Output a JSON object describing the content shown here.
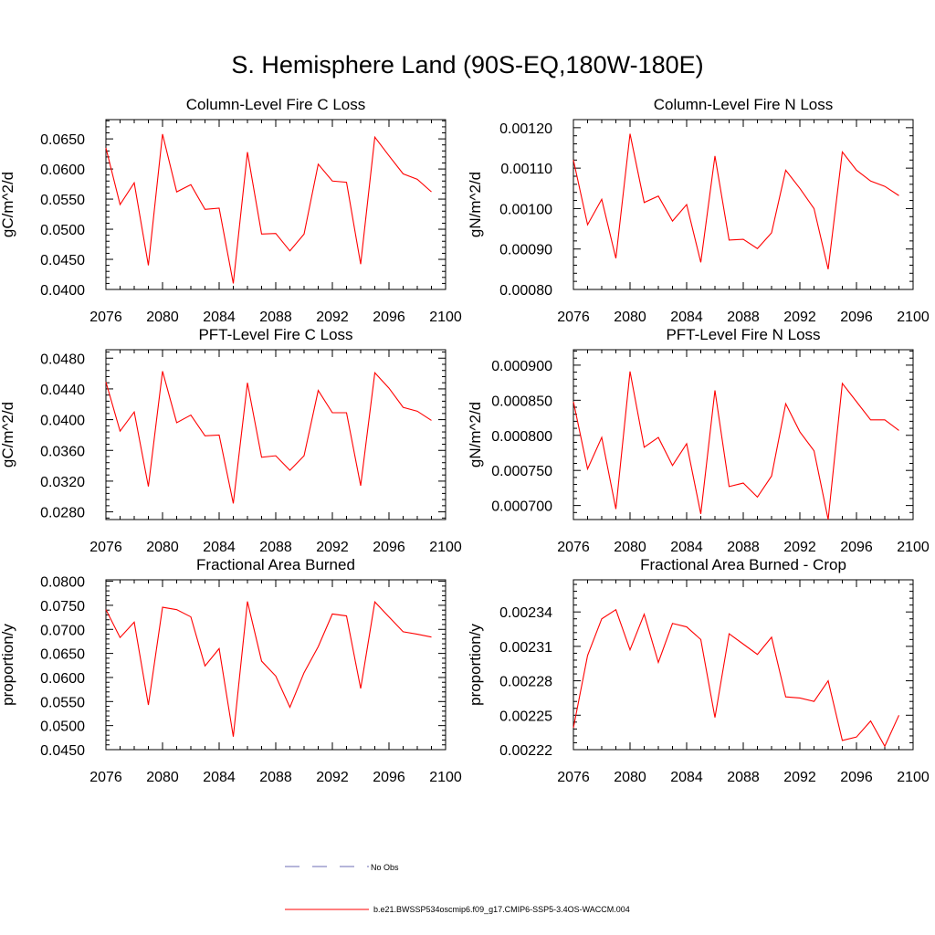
{
  "title": "S. Hemisphere Land (90S-EQ,180W-180E)",
  "legend": {
    "obs_label": "No Obs",
    "obs_color": "#6b6bb5",
    "model_label": "b.e21.BWSSP534oscmip6.f09_g17.CMIP6-SSP5-3.4OS-WACCM.004",
    "model_color": "#ff0000"
  },
  "chart_data": [
    {
      "type": "line",
      "title": "Column-Level Fire C Loss",
      "ylabel": "gC/m^2/d",
      "xlim": [
        2076,
        2100
      ],
      "ylim": [
        0.04,
        0.0682
      ],
      "xticks": [
        "2076",
        "2080",
        "2084",
        "2088",
        "2092",
        "2096",
        "2100"
      ],
      "yticks": [
        0.04,
        0.045,
        0.05,
        0.055,
        0.06,
        0.065
      ],
      "ytick_labels": [
        "0.0400",
        "0.0450",
        "0.0500",
        "0.0550",
        "0.0600",
        "0.0650"
      ],
      "x": [
        2076,
        2077,
        2078,
        2079,
        2080,
        2081,
        2082,
        2083,
        2084,
        2085,
        2086,
        2087,
        2088,
        2089,
        2090,
        2091,
        2092,
        2093,
        2094,
        2095,
        2096,
        2097,
        2098,
        2099
      ],
      "series": [
        {
          "name": "b.e21.BWSSP534oscmip6.f09_g17.CMIP6-SSP5-3.4OS-WACCM.004",
          "values": [
            0.0635,
            0.0541,
            0.0577,
            0.044,
            0.0658,
            0.0562,
            0.0574,
            0.0533,
            0.0535,
            0.041,
            0.0628,
            0.0492,
            0.0493,
            0.0464,
            0.0492,
            0.0608,
            0.058,
            0.0578,
            0.0442,
            0.0653,
            0.0622,
            0.0592,
            0.0583,
            0.0562
          ]
        }
      ]
    },
    {
      "type": "line",
      "title": "Column-Level Fire N Loss",
      "ylabel": "gN/m^2/d",
      "xlim": [
        2076,
        2100
      ],
      "ylim": [
        0.0008,
        0.00122
      ],
      "xticks": [
        "2076",
        "2080",
        "2084",
        "2088",
        "2092",
        "2096",
        "2100"
      ],
      "yticks": [
        0.0008,
        0.0009,
        0.001,
        0.0011,
        0.0012
      ],
      "ytick_labels": [
        "0.00080",
        "0.00090",
        "0.00100",
        "0.00110",
        "0.00120"
      ],
      "x": [
        2076,
        2077,
        2078,
        2079,
        2080,
        2081,
        2082,
        2083,
        2084,
        2085,
        2086,
        2087,
        2088,
        2089,
        2090,
        2091,
        2092,
        2093,
        2094,
        2095,
        2096,
        2097,
        2098,
        2099
      ],
      "series": [
        {
          "name": "b.e21.BWSSP534oscmip6.f09_g17.CMIP6-SSP5-3.4OS-WACCM.004",
          "values": [
            0.00112,
            0.00096,
            0.001023,
            0.000877,
            0.001185,
            0.001015,
            0.001031,
            0.000969,
            0.00101,
            0.000867,
            0.00113,
            0.000922,
            0.000924,
            0.000901,
            0.00094,
            0.001095,
            0.00105,
            0.001,
            0.00085,
            0.00114,
            0.001095,
            0.001068,
            0.001055,
            0.001032
          ]
        }
      ]
    },
    {
      "type": "line",
      "title": "PFT-Level Fire C Loss",
      "ylabel": "gC/m^2/d",
      "xlim": [
        2076,
        2100
      ],
      "ylim": [
        0.027,
        0.0491
      ],
      "xticks": [
        "2076",
        "2080",
        "2084",
        "2088",
        "2092",
        "2096",
        "2100"
      ],
      "yticks": [
        0.028,
        0.032,
        0.036,
        0.04,
        0.044,
        0.048
      ],
      "ytick_labels": [
        "0.0280",
        "0.0320",
        "0.0360",
        "0.0400",
        "0.0440",
        "0.0480"
      ],
      "x": [
        2076,
        2077,
        2078,
        2079,
        2080,
        2081,
        2082,
        2083,
        2084,
        2085,
        2086,
        2087,
        2088,
        2089,
        2090,
        2091,
        2092,
        2093,
        2094,
        2095,
        2096,
        2097,
        2098,
        2099
      ],
      "series": [
        {
          "name": "b.e21.BWSSP534oscmip6.f09_g17.CMIP6-SSP5-3.4OS-WACCM.004",
          "values": [
            0.0449,
            0.0385,
            0.041,
            0.0313,
            0.0463,
            0.0396,
            0.0406,
            0.0379,
            0.038,
            0.0291,
            0.0448,
            0.0351,
            0.0353,
            0.0334,
            0.0353,
            0.0438,
            0.0409,
            0.0409,
            0.0314,
            0.0461,
            0.0441,
            0.0416,
            0.0411,
            0.0399
          ]
        }
      ]
    },
    {
      "type": "line",
      "title": "PFT-Level Fire N Loss",
      "ylabel": "gN/m^2/d",
      "xlim": [
        2076,
        2100
      ],
      "ylim": [
        0.00068,
        0.000922
      ],
      "xticks": [
        "2076",
        "2080",
        "2084",
        "2088",
        "2092",
        "2096",
        "2100"
      ],
      "yticks": [
        0.0007,
        0.00075,
        0.0008,
        0.00085,
        0.0009
      ],
      "ytick_labels": [
        "0.000700",
        "0.000750",
        "0.000800",
        "0.000850",
        "0.000900"
      ],
      "x": [
        2076,
        2077,
        2078,
        2079,
        2080,
        2081,
        2082,
        2083,
        2084,
        2085,
        2086,
        2087,
        2088,
        2089,
        2090,
        2091,
        2092,
        2093,
        2094,
        2095,
        2096,
        2097,
        2098,
        2099
      ],
      "series": [
        {
          "name": "b.e21.BWSSP534oscmip6.f09_g17.CMIP6-SSP5-3.4OS-WACCM.004",
          "values": [
            0.000848,
            0.000752,
            0.000797,
            0.000695,
            0.000891,
            0.000783,
            0.000797,
            0.000757,
            0.000788,
            0.000688,
            0.000864,
            0.000727,
            0.000732,
            0.000712,
            0.000742,
            0.000845,
            0.000805,
            0.000778,
            0.00068,
            0.000874,
            0.000848,
            0.000822,
            0.000822,
            0.000807
          ]
        }
      ]
    },
    {
      "type": "line",
      "title": "Fractional Area Burned",
      "ylabel": "proportion/y",
      "xlim": [
        2076,
        2100
      ],
      "ylim": [
        0.045,
        0.0803
      ],
      "xticks": [
        "2076",
        "2080",
        "2084",
        "2088",
        "2092",
        "2096",
        "2100"
      ],
      "yticks": [
        0.045,
        0.05,
        0.055,
        0.06,
        0.065,
        0.07,
        0.075,
        0.08
      ],
      "ytick_labels": [
        "0.0450",
        "0.0500",
        "0.0550",
        "0.0600",
        "0.0650",
        "0.0700",
        "0.0750",
        "0.0800"
      ],
      "x": [
        2076,
        2077,
        2078,
        2079,
        2080,
        2081,
        2082,
        2083,
        2084,
        2085,
        2086,
        2087,
        2088,
        2089,
        2090,
        2091,
        2092,
        2093,
        2094,
        2095,
        2096,
        2097,
        2098,
        2099
      ],
      "series": [
        {
          "name": "b.e21.BWSSP534oscmip6.f09_g17.CMIP6-SSP5-3.4OS-WACCM.004",
          "values": [
            0.0741,
            0.0683,
            0.0715,
            0.0543,
            0.0746,
            0.0741,
            0.0726,
            0.0624,
            0.066,
            0.0477,
            0.0758,
            0.0634,
            0.0603,
            0.0538,
            0.061,
            0.0664,
            0.0732,
            0.0728,
            0.0577,
            0.0757,
            0.0726,
            0.0695,
            0.069,
            0.0684
          ]
        }
      ]
    },
    {
      "type": "line",
      "title": "Fractional Area Burned - Crop",
      "ylabel": "proportion/y",
      "xlim": [
        2076,
        2100
      ],
      "ylim": [
        0.00222,
        0.002368
      ],
      "xticks": [
        "2076",
        "2080",
        "2084",
        "2088",
        "2092",
        "2096",
        "2100"
      ],
      "yticks": [
        0.00222,
        0.00225,
        0.00228,
        0.00231,
        0.00234
      ],
      "ytick_labels": [
        "0.00222",
        "0.00225",
        "0.00228",
        "0.00231",
        "0.00234"
      ],
      "x": [
        2076,
        2077,
        2078,
        2079,
        2080,
        2081,
        2082,
        2083,
        2084,
        2085,
        2086,
        2087,
        2088,
        2089,
        2090,
        2091,
        2092,
        2093,
        2094,
        2095,
        2096,
        2097,
        2098,
        2099
      ],
      "series": [
        {
          "name": "b.e21.BWSSP534oscmip6.f09_g17.CMIP6-SSP5-3.4OS-WACCM.004",
          "values": [
            0.002239,
            0.002302,
            0.002334,
            0.002342,
            0.002307,
            0.002338,
            0.002296,
            0.00233,
            0.002327,
            0.002316,
            0.002248,
            0.002321,
            0.002312,
            0.002303,
            0.002318,
            0.002266,
            0.002265,
            0.002262,
            0.00228,
            0.002228,
            0.002231,
            0.002245,
            0.002223,
            0.00225
          ]
        }
      ]
    }
  ]
}
